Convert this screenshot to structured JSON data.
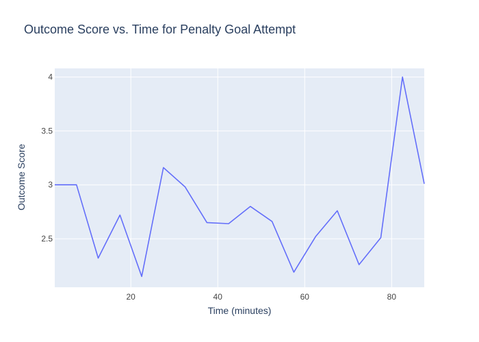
{
  "chart_data": {
    "type": "line",
    "title": "Outcome Score vs. Time for Penalty Goal Attempt",
    "xlabel": "Time (minutes)",
    "ylabel": "Outcome Score",
    "xlim": [
      2.5,
      87.5
    ],
    "ylim": [
      2.05,
      4.08
    ],
    "xticks": [
      20,
      40,
      60,
      80
    ],
    "yticks": [
      2.5,
      3,
      3.5,
      4
    ],
    "xtick_labels": [
      "20",
      "40",
      "60",
      "80"
    ],
    "ytick_labels": [
      "2.5",
      "3",
      "3.5",
      "4"
    ],
    "grid": true,
    "colors": {
      "line": "#636efa",
      "plot_bg": "#e5ecf6",
      "grid": "#ffffff"
    },
    "x": [
      2.5,
      7.5,
      12.5,
      17.5,
      22.5,
      27.5,
      32.5,
      37.5,
      42.5,
      47.5,
      52.5,
      57.5,
      62.5,
      67.5,
      72.5,
      77.5,
      82.5,
      87.5
    ],
    "series": [
      {
        "values": [
          3.0,
          3.0,
          2.32,
          2.72,
          2.15,
          3.16,
          2.98,
          2.65,
          2.64,
          2.8,
          2.66,
          2.19,
          2.52,
          2.76,
          2.26,
          2.51,
          4.0,
          3.01
        ]
      }
    ]
  }
}
